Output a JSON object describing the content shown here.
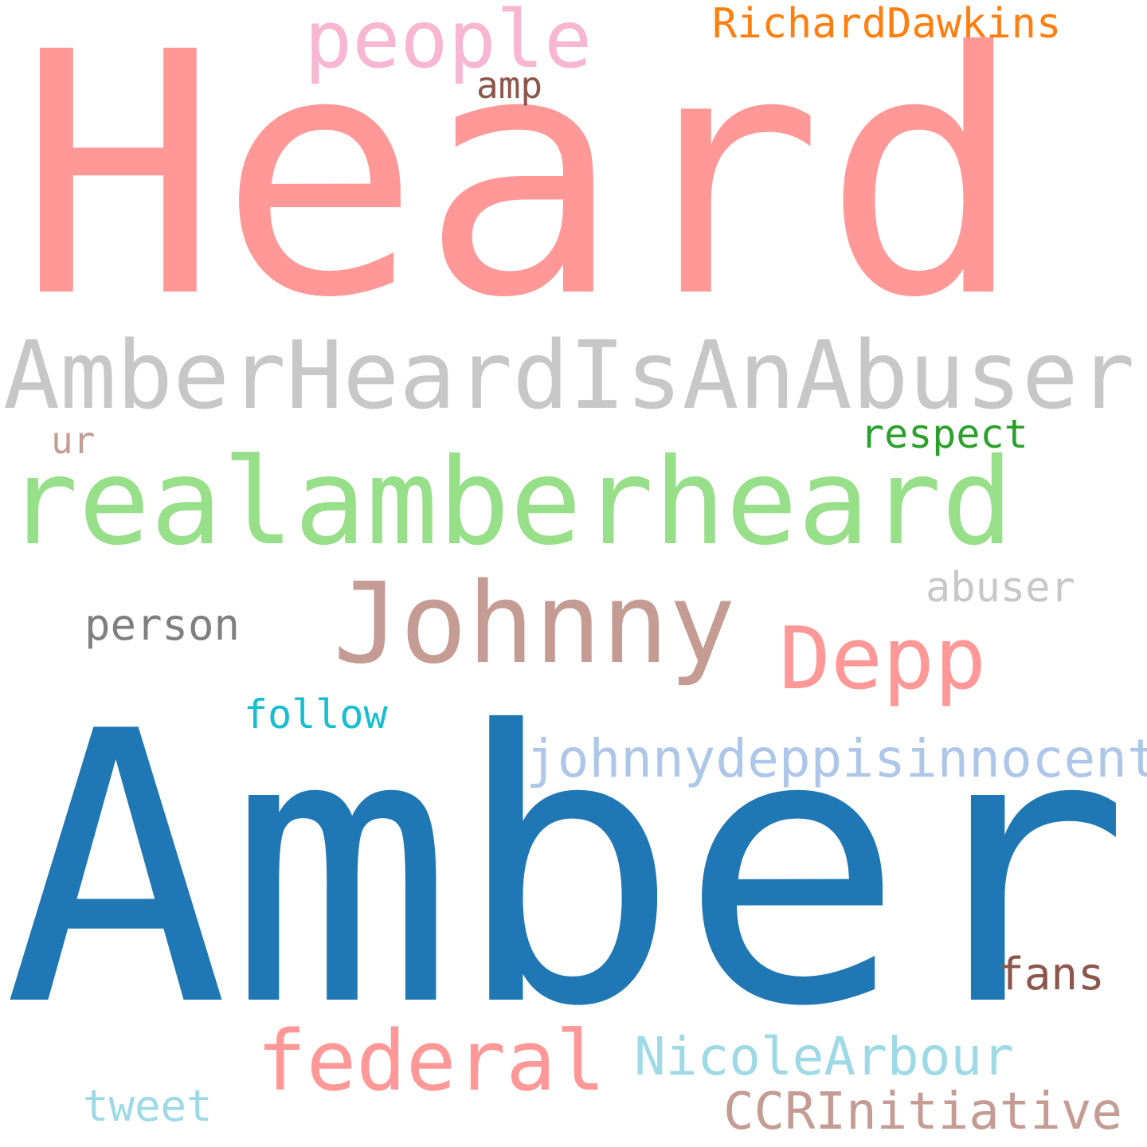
{
  "words": {
    "heard": {
      "text": "Heard",
      "color": "#FF9896"
    },
    "amber": {
      "text": "Amber",
      "color": "#1F77B4"
    },
    "amberheardisanabuser": {
      "text": "AmberHeardIsAnAbuser",
      "color": "#C7C7C7"
    },
    "realamberheard": {
      "text": "realamberheard",
      "color": "#98DF8A"
    },
    "johnny": {
      "text": "Johnny",
      "color": "#C49C94"
    },
    "depp": {
      "text": "Depp",
      "color": "#FF9896"
    },
    "people": {
      "text": "people",
      "color": "#F7B6D2"
    },
    "richarddawkins": {
      "text": "RichardDawkins",
      "color": "#FF7F0E"
    },
    "amp": {
      "text": "amp",
      "color": "#8C564B"
    },
    "respect": {
      "text": "respect",
      "color": "#2CA02C"
    },
    "ur": {
      "text": "ur",
      "color": "#C49C94"
    },
    "abuser": {
      "text": "abuser",
      "color": "#C7C7C7"
    },
    "person": {
      "text": "person",
      "color": "#7F7F7F"
    },
    "follow": {
      "text": "follow",
      "color": "#17BECF"
    },
    "johnnydeppisinnocent": {
      "text": "johnnydeppisinnocent",
      "color": "#AEC7E8"
    },
    "fans": {
      "text": "fans",
      "color": "#8C564B"
    },
    "federal": {
      "text": "federal",
      "color": "#FF9896"
    },
    "nicolearbour": {
      "text": "NicoleArbour",
      "color": "#9EDAE5"
    },
    "ccrinitiative": {
      "text": "CCRInitiative",
      "color": "#C49C94"
    },
    "tweet": {
      "text": "tweet",
      "color": "#9EDAE5"
    }
  }
}
